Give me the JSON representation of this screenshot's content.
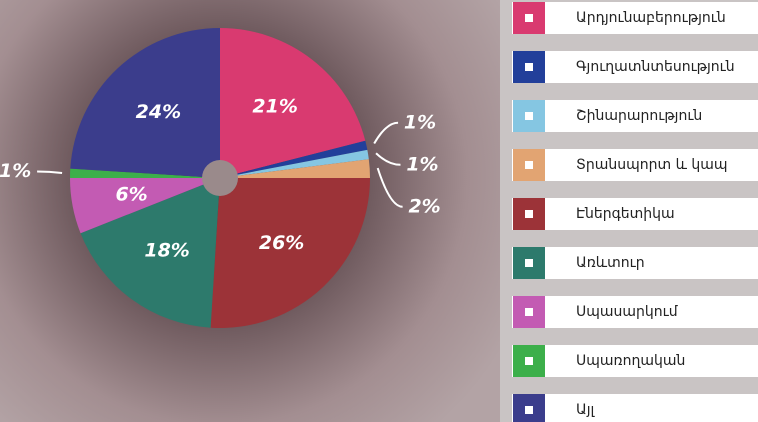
{
  "chart_data": {
    "type": "pie",
    "categories": [
      "Արդյունաբերություն",
      "Գյուղատնտեսություն",
      "Շինարարություն",
      "Տրանսպորտ և կապ",
      "Էներգետիկա",
      "Առևտուր",
      "Սպասարկում",
      "Սպառողական",
      "Այլ"
    ],
    "values": [
      21,
      1,
      1,
      2,
      26,
      18,
      6,
      1,
      24
    ],
    "value_labels": [
      "21%",
      "1%",
      "1%",
      "2%",
      "26%",
      "18%",
      "6%",
      "1%",
      "24%"
    ],
    "colors": [
      "#d93a70",
      "#223f9a",
      "#85c6e2",
      "#e2a472",
      "#9c3338",
      "#2d7a6c",
      "#c35bb3",
      "#3caf4a",
      "#3b3d8c"
    ],
    "legend": "right"
  }
}
